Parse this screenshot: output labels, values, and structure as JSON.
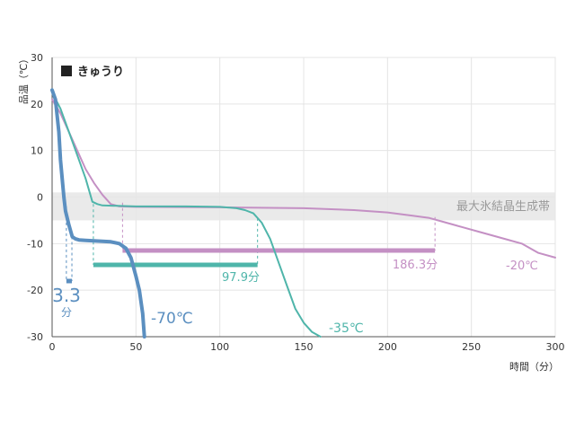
{
  "chart_data": {
    "type": "line",
    "legend": {
      "label": "きゅうり",
      "marker_color": "#222222"
    },
    "xlabel": "時間（分）",
    "ylabel": "品温（℃）",
    "xlim": [
      0,
      300
    ],
    "ylim": [
      -30,
      30
    ],
    "x_ticks": [
      0,
      50,
      100,
      150,
      200,
      250,
      300
    ],
    "y_ticks": [
      30,
      20,
      10,
      0,
      -10,
      -20,
      -30
    ],
    "grid": true,
    "band": {
      "label": "最大氷結晶生成帯",
      "y_range": [
        -5,
        1
      ],
      "color": "#e6e6e6"
    },
    "series": [
      {
        "name": "-70℃",
        "color": "#5b8fc0",
        "points": [
          [
            0,
            23
          ],
          [
            2,
            21
          ],
          [
            4,
            14
          ],
          [
            5,
            8
          ],
          [
            6,
            4
          ],
          [
            7,
            0
          ],
          [
            8,
            -3
          ],
          [
            10,
            -6
          ],
          [
            12,
            -8.5
          ],
          [
            14,
            -9
          ],
          [
            16,
            -9.2
          ],
          [
            20,
            -9.3
          ],
          [
            30,
            -9.5
          ],
          [
            35,
            -9.6
          ],
          [
            40,
            -10
          ],
          [
            44,
            -11
          ],
          [
            47,
            -13
          ],
          [
            50,
            -17
          ],
          [
            52,
            -20
          ],
          [
            54,
            -25
          ],
          [
            55,
            -30
          ]
        ],
        "freeze_time_value": 3.3,
        "freeze_time_label": "3.3",
        "freeze_time_unit": "分",
        "freeze_interval": [
          8.5,
          11.8
        ]
      },
      {
        "name": "-35℃",
        "color": "#4fb5aa",
        "points": [
          [
            0,
            22.5
          ],
          [
            5,
            19
          ],
          [
            10,
            14
          ],
          [
            15,
            9
          ],
          [
            20,
            4
          ],
          [
            24,
            -1
          ],
          [
            27,
            -1.5
          ],
          [
            30,
            -1.8
          ],
          [
            50,
            -2
          ],
          [
            80,
            -2
          ],
          [
            100,
            -2.1
          ],
          [
            110,
            -2.4
          ],
          [
            115,
            -2.8
          ],
          [
            120,
            -3.5
          ],
          [
            125,
            -5.5
          ],
          [
            130,
            -9
          ],
          [
            135,
            -14
          ],
          [
            140,
            -19
          ],
          [
            145,
            -24
          ],
          [
            150,
            -27
          ],
          [
            155,
            -29
          ],
          [
            160,
            -30
          ]
        ],
        "freeze_time_value": 97.9,
        "freeze_time_label": "97.9分",
        "freeze_interval": [
          24.6,
          122.5
        ]
      },
      {
        "name": "-20℃",
        "color": "#c490c4",
        "points": [
          [
            0,
            21
          ],
          [
            5,
            18
          ],
          [
            10,
            14
          ],
          [
            15,
            10
          ],
          [
            20,
            6
          ],
          [
            25,
            3
          ],
          [
            30,
            0.5
          ],
          [
            35,
            -1.5
          ],
          [
            40,
            -2
          ],
          [
            50,
            -2.1
          ],
          [
            100,
            -2.2
          ],
          [
            150,
            -2.4
          ],
          [
            180,
            -2.8
          ],
          [
            200,
            -3.3
          ],
          [
            215,
            -4
          ],
          [
            225,
            -4.5
          ],
          [
            235,
            -5.5
          ],
          [
            245,
            -6.5
          ],
          [
            255,
            -7.5
          ],
          [
            270,
            -9
          ],
          [
            280,
            -10
          ],
          [
            290,
            -12
          ],
          [
            300,
            -13
          ]
        ],
        "freeze_time_value": 186.3,
        "freeze_time_label": "186.3分",
        "freeze_interval": [
          42,
          228.3
        ]
      }
    ]
  }
}
